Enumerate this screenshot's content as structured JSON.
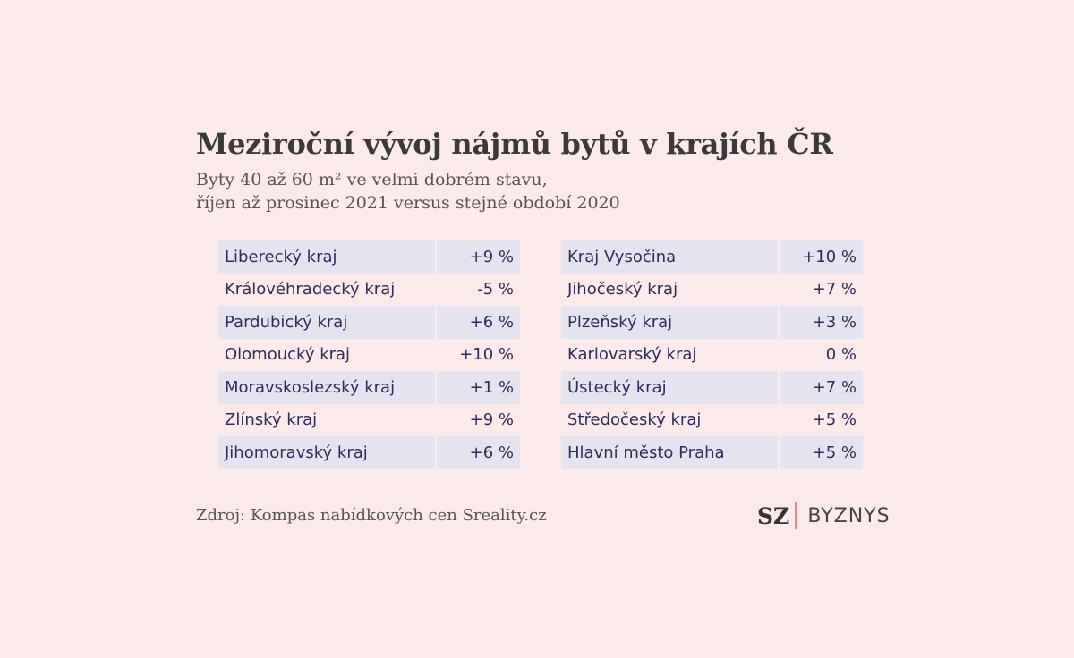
{
  "title": "Meziroční vývoj nájmů bytů v krajích ČR",
  "subtitle_line1": "Byty 40 až 60 m² ve velmi dobrém stavu,",
  "subtitle_line2": "říjen až prosinec 2021 versus stejné období 2020",
  "source": "Zdroj: Kompas nabídkových cen Sreality.cz",
  "logo": {
    "sz": "SZ",
    "byznys": "BYZNYS"
  },
  "colors": {
    "background": "#fce9ea",
    "row_shade": "#e6e3f0",
    "text": "#2c2d5a"
  },
  "chart_data": {
    "type": "table",
    "title": "Meziroční vývoj nájmů bytů v krajích ČR",
    "columns": [
      {
        "rows": [
          {
            "region": "Liberecký kraj",
            "value": "+9 %"
          },
          {
            "region": "Královéhradecký kraj",
            "value": "-5 %"
          },
          {
            "region": "Pardubický kraj",
            "value": "+6 %"
          },
          {
            "region": "Olomoucký kraj",
            "value": "+10 %"
          },
          {
            "region": "Moravskoslezský kraj",
            "value": "+1 %"
          },
          {
            "region": "Zlínský kraj",
            "value": "+9 %"
          },
          {
            "region": "Jihomoravský kraj",
            "value": "+6 %"
          }
        ]
      },
      {
        "rows": [
          {
            "region": "Kraj Vysočina",
            "value": "+10 %"
          },
          {
            "region": "Jihočeský kraj",
            "value": "+7 %"
          },
          {
            "region": "Plzeňský kraj",
            "value": "+3 %"
          },
          {
            "region": "Karlovarský kraj",
            "value": "0 %"
          },
          {
            "region": "Ústecký kraj",
            "value": "+7 %"
          },
          {
            "region": "Středočeský kraj",
            "value": "+5 %"
          },
          {
            "region": "Hlavní město Praha",
            "value": "+5 %"
          }
        ]
      }
    ]
  }
}
